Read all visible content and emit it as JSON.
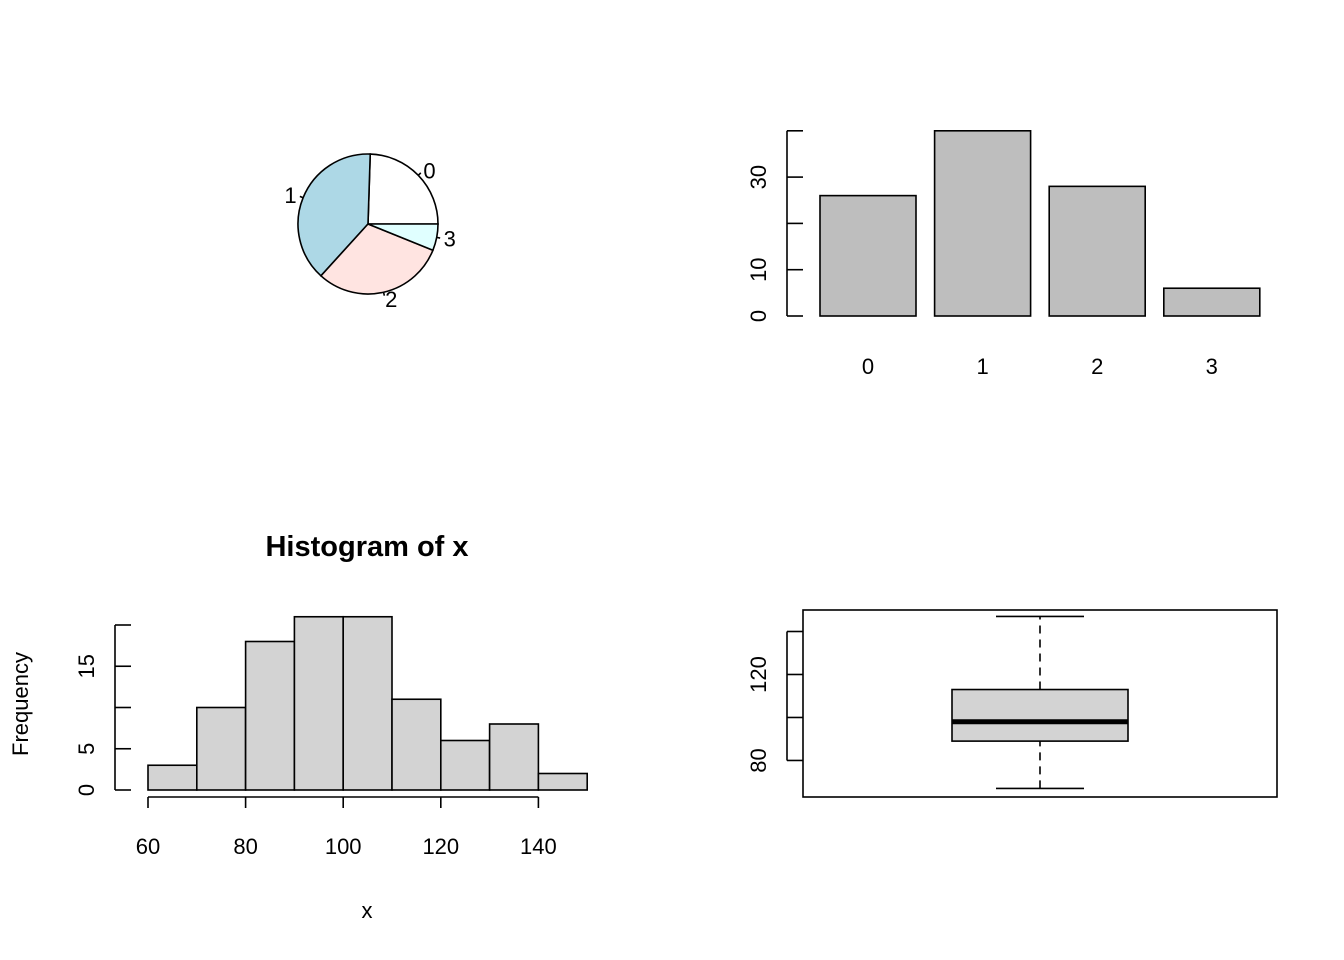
{
  "chart_data": [
    {
      "type": "pie",
      "labels": [
        "0",
        "1",
        "2",
        "3"
      ],
      "values": [
        24,
        38,
        30,
        6
      ],
      "colors": [
        "#FFFFFF",
        "#ADD8E6",
        "#FFE4E1",
        "#E0FFFF"
      ]
    },
    {
      "type": "bar",
      "categories": [
        "0",
        "1",
        "2",
        "3"
      ],
      "values": [
        26,
        40,
        28,
        6
      ],
      "ylim": [
        0,
        40
      ],
      "yticks": [
        0,
        10,
        30
      ],
      "ytick_labels": [
        "0",
        "10",
        "30"
      ],
      "bar_color": "#BEBEBE"
    },
    {
      "type": "bar",
      "title": "Histogram of x",
      "xlabel": "x",
      "ylabel": "Frequency",
      "bins": [
        [
          60,
          70
        ],
        [
          70,
          80
        ],
        [
          80,
          90
        ],
        [
          90,
          100
        ],
        [
          100,
          110
        ],
        [
          110,
          120
        ],
        [
          120,
          130
        ],
        [
          130,
          140
        ],
        [
          140,
          150
        ]
      ],
      "values": [
        3,
        10,
        18,
        21,
        21,
        11,
        6,
        8,
        2
      ],
      "xlim": [
        60,
        150
      ],
      "xticks": [
        60,
        80,
        100,
        120,
        140
      ],
      "xtick_labels": [
        "60",
        "80",
        "100",
        "120",
        "140"
      ],
      "ylim": [
        0,
        20
      ],
      "yticks": [
        0,
        5,
        10,
        15,
        20
      ],
      "ytick_labels": [
        "0",
        "5",
        "",
        "15",
        ""
      ],
      "bar_color": "#D3D3D3"
    },
    {
      "type": "boxplot",
      "stats": {
        "min": 67,
        "q1": 89,
        "median": 98,
        "q3": 113,
        "max": 147
      },
      "ylim": [
        63,
        150
      ],
      "yticks": [
        80,
        100,
        120,
        140
      ],
      "ytick_labels": [
        "80",
        "",
        "120",
        ""
      ],
      "box_color": "#D3D3D3"
    }
  ]
}
